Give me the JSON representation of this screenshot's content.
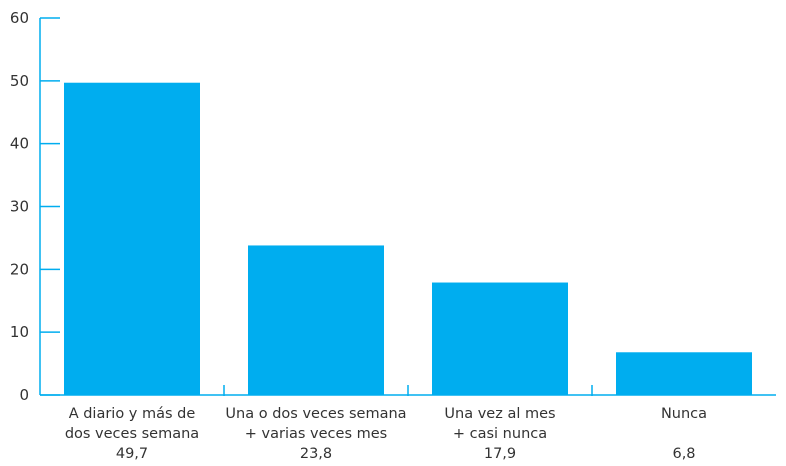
{
  "chart_data": {
    "type": "bar",
    "categories": [
      [
        "A diario y más de",
        "dos veces semana"
      ],
      [
        "Una o dos veces semana",
        "+ varias veces mes"
      ],
      [
        "Una vez al mes",
        "+ casi nunca"
      ],
      [
        "Nunca"
      ]
    ],
    "values": [
      49.7,
      23.8,
      17.9,
      6.8
    ],
    "value_labels": [
      "49,7",
      "23,8",
      "17,9",
      "6,8"
    ],
    "yticks": [
      0,
      10,
      20,
      30,
      40,
      50,
      60
    ],
    "ylim": [
      0,
      60
    ],
    "grid": false,
    "colors": {
      "bar": "#00adef",
      "axis": "#00adef",
      "text": "#333333"
    }
  }
}
